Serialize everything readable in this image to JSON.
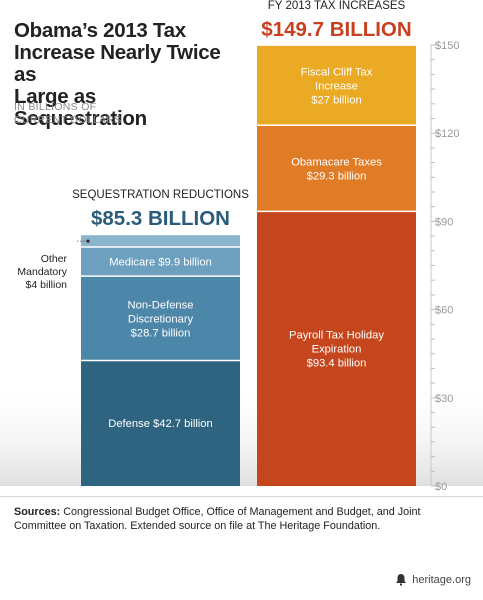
{
  "title_lines": [
    "Obama’s 2013 Tax",
    "Increase Nearly Twice as",
    "Large as Sequestration"
  ],
  "units_lines": [
    "IN BILLIONS OF",
    "CURRENT DOLLARS"
  ],
  "sources": {
    "label": "Sources:",
    "text": " Congressional Budget Office, Office of Management and Budget, and Joint Committee on Taxation. Extended source on file at The Heritage Foundation."
  },
  "footer": {
    "site": "heritage.org",
    "icon": "bell-icon"
  },
  "colors": {
    "sequestration": [
      "#2f6480",
      "#4c86a8",
      "#6d9fbe",
      "#8ab4cc"
    ],
    "tax": [
      "#c5461c",
      "#e07b26",
      "#ebaa24"
    ],
    "axis_text": "#9a9a9a",
    "header_tax": "#c8401f",
    "header_seq": "#2a5c7a"
  },
  "chart_data": {
    "type": "bar",
    "stacked": true,
    "yticks": [
      "$0",
      "$30",
      "$60",
      "$90",
      "$120",
      "$150"
    ],
    "ytick_values": [
      0,
      30,
      60,
      90,
      120,
      150
    ],
    "ylim": [
      0,
      150
    ],
    "axis_position": "right",
    "bars": [
      {
        "header": "SEQUESTRATION REDUCTIONS",
        "total_label": "$85.3 BILLION",
        "total": 85.3,
        "segments": [
          {
            "label_lines": [
              "Defense $42.7 billion"
            ],
            "value": 42.7
          },
          {
            "label_lines": [
              "Non-Defense",
              "Discretionary",
              "$28.7 billion"
            ],
            "value": 28.7
          },
          {
            "label_lines": [
              "Medicare $9.9 billion"
            ],
            "value": 9.9
          },
          {
            "label_lines": [
              "Other",
              "Mandatory",
              "$4 billion"
            ],
            "value": 4,
            "external": true
          }
        ]
      },
      {
        "header": "FY 2013 TAX INCREASES",
        "total_label": "$149.7 BILLION",
        "total": 149.7,
        "segments": [
          {
            "label_lines": [
              "Payroll Tax Holiday",
              "Expiration",
              "$93.4 billion"
            ],
            "value": 93.4
          },
          {
            "label_lines": [
              "Obamacare Taxes",
              "$29.3 billion"
            ],
            "value": 29.3
          },
          {
            "label_lines": [
              "Fiscal Cliff Tax",
              "Increase",
              "$27 billion"
            ],
            "value": 27
          }
        ]
      }
    ]
  }
}
